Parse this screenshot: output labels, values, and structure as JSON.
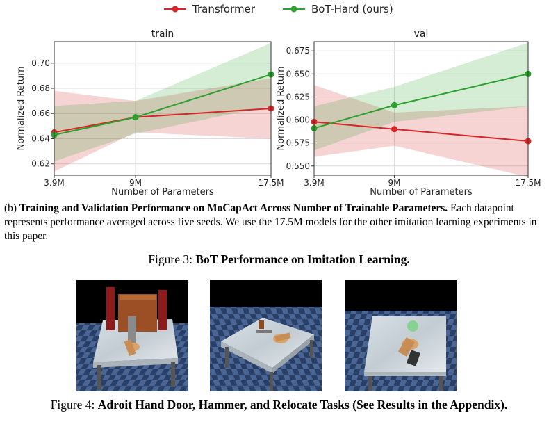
{
  "legend": [
    {
      "name": "Transformer",
      "color": "#d62728"
    },
    {
      "name": "BoT-Hard (ours)",
      "color": "#2ca02c"
    }
  ],
  "chart_data": [
    {
      "type": "line",
      "title": "train",
      "xlabel": "Number of Parameters",
      "ylabel": "Normalized Return",
      "x": [
        "3.9M",
        "9M",
        "17.5M"
      ],
      "x_values": [
        3.9,
        9,
        17.5
      ],
      "yticks": [
        "0.62",
        "0.64",
        "0.66",
        "0.68",
        "0.70"
      ],
      "ylim": [
        0.611,
        0.717
      ],
      "grid": true,
      "series": [
        {
          "name": "Transformer",
          "color": "#d62728",
          "values": [
            0.645,
            0.657,
            0.664
          ],
          "lower": [
            0.614,
            0.645,
            0.64
          ],
          "upper": [
            0.678,
            0.67,
            0.688
          ]
        },
        {
          "name": "BoT-Hard (ours)",
          "color": "#2ca02c",
          "values": [
            0.643,
            0.657,
            0.691
          ],
          "lower": [
            0.622,
            0.644,
            0.666
          ],
          "upper": [
            0.666,
            0.67,
            0.716
          ]
        }
      ]
    },
    {
      "type": "line",
      "title": "val",
      "xlabel": "Number of Parameters",
      "ylabel": "Normalized Return",
      "x": [
        "3.9M",
        "9M",
        "17.5M"
      ],
      "x_values": [
        3.9,
        9,
        17.5
      ],
      "yticks": [
        "0.550",
        "0.575",
        "0.600",
        "0.625",
        "0.650",
        "0.675"
      ],
      "ylim": [
        0.54,
        0.685
      ],
      "grid": true,
      "series": [
        {
          "name": "Transformer",
          "color": "#d62728",
          "values": [
            0.598,
            0.59,
            0.577
          ],
          "lower": [
            0.56,
            0.572,
            0.538
          ],
          "upper": [
            0.638,
            0.608,
            0.615
          ]
        },
        {
          "name": "BoT-Hard (ours)",
          "color": "#2ca02c",
          "values": [
            0.591,
            0.616,
            0.65
          ],
          "lower": [
            0.567,
            0.598,
            0.615
          ],
          "upper": [
            0.615,
            0.636,
            0.684
          ]
        }
      ]
    }
  ],
  "caption": {
    "prefix": "(b) ",
    "bold": "Training and Validation Performance on MoCapAct Across Number of Trainable Parameters.",
    "rest": " Each datapoint represents performance averaged across five seeds. We use the 17.5M models for the other imitation learning experiments in this paper."
  },
  "figure3": {
    "label": "Figure 3: ",
    "title": "BoT Performance on Imitation Learning."
  },
  "figure4": {
    "label": "Figure 4: ",
    "title": "Adroit Hand Door, Hammer, and Relocate Tasks (See Results in the Appendix)."
  },
  "images": [
    {
      "name": "adroit-door-image",
      "task": "Door"
    },
    {
      "name": "adroit-hammer-image",
      "task": "Hammer"
    },
    {
      "name": "adroit-relocate-image",
      "task": "Relocate"
    }
  ]
}
